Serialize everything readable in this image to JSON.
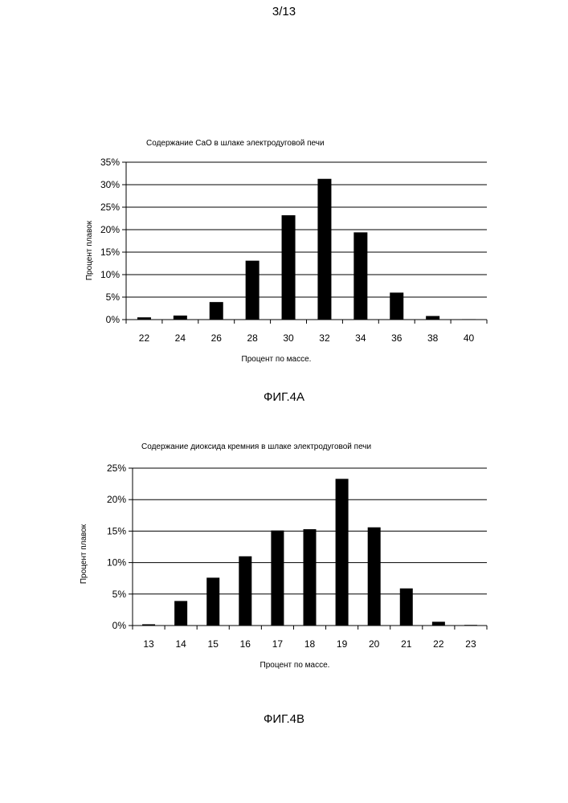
{
  "page_number": "3/13",
  "chart_data": [
    {
      "type": "bar",
      "title": "Содержание CaO в шлаке электродуговой печи",
      "xlabel": "Процент по массе.",
      "ylabel": "Процент плавок",
      "categories": [
        "22",
        "24",
        "26",
        "28",
        "30",
        "32",
        "34",
        "36",
        "38",
        "40"
      ],
      "values": [
        0.5,
        0.9,
        3.9,
        13.1,
        23.2,
        31.3,
        19.4,
        6.0,
        0.8,
        0.1
      ],
      "ylim": [
        0,
        35
      ],
      "yticks": [
        "0%",
        "5%",
        "10%",
        "15%",
        "20%",
        "25%",
        "30%",
        "35%"
      ],
      "grid": true,
      "bar_color": "#000000",
      "caption": "ФИГ.4А"
    },
    {
      "type": "bar",
      "title": "Содержание диоксида кремния в шлаке электродуговой печи",
      "xlabel": "Процент по массе.",
      "ylabel": "Процент плавок",
      "categories": [
        "13",
        "14",
        "15",
        "16",
        "17",
        "18",
        "19",
        "20",
        "21",
        "22",
        "23"
      ],
      "values": [
        0.2,
        3.9,
        7.6,
        11.0,
        15.1,
        15.3,
        23.3,
        15.6,
        5.9,
        0.6,
        0.1
      ],
      "ylim": [
        0,
        25
      ],
      "yticks": [
        "0%",
        "5%",
        "10%",
        "15%",
        "20%",
        "25%"
      ],
      "grid": true,
      "bar_color": "#000000",
      "caption": "ФИГ.4В"
    }
  ]
}
